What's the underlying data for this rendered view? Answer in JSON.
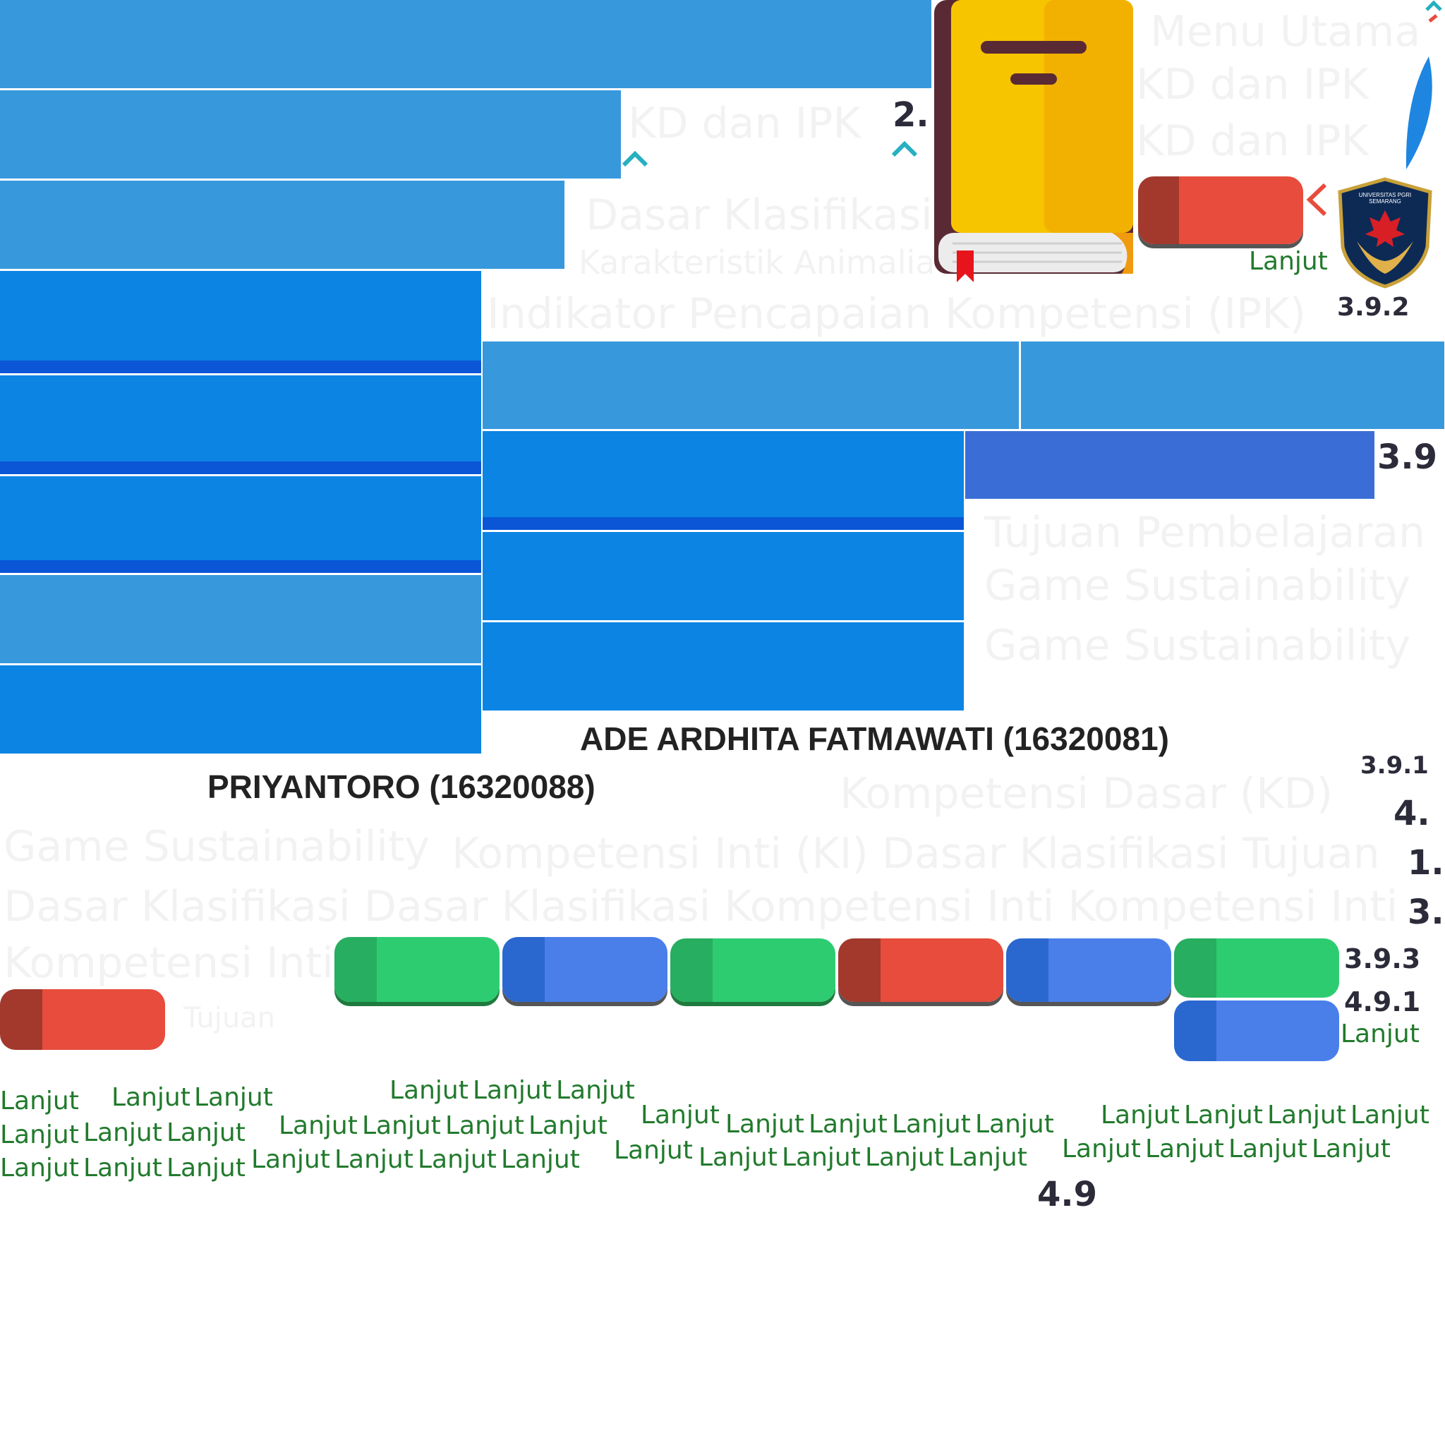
{
  "title_faint": {
    "t1": "Menu Utama",
    "t2": "KD dan IPK",
    "t3": "KD dan IPK",
    "t4": "KD dan IPK",
    "t5": "Dasar Klasifikasi",
    "t6": "Karakteristik Animalia",
    "t7": "Indikator Pencapaian Kompetensi (IPK)",
    "t8": "Tujuan Pembelajaran",
    "t9": "Game Sustainability",
    "t10": "Game Sustainability",
    "t11": "Kompetensi Dasar (KD)",
    "t12": "Game Sustainability",
    "t13": "Kompetensi Inti (KI)  Dasar Klasifikasi  Tujuan",
    "t14": "Dasar Klasifikasi  Dasar Klasifikasi  Kompetensi Inti  Kompetensi Inti",
    "t15": "Kompetensi Inti",
    "t16": "Tujuan"
  },
  "names": {
    "ade": "ADE ARDHITA FATMAWATI (16320081)",
    "pri": "PRIYANTORO (16320088)"
  },
  "numbers": {
    "n2": "2.",
    "n392": "3.9.2",
    "n39": "3.9",
    "n391": "3.9.1",
    "n4": "4.",
    "n1": "1.",
    "n3": "3.",
    "n393": "3.9.3",
    "n491": "4.9.1",
    "n49": "4.9"
  },
  "buttons": {
    "lanjut": "Lanjut"
  },
  "logo": {
    "text": "UNIVERSITAS PGRI SEMARANG"
  },
  "colors": {
    "light_blue": "#3898dc",
    "dark_blue": "#0b84e4",
    "green": "#2ecc71",
    "red": "#e74c3c",
    "blue_btn": "#4a7fea",
    "book": "#f5b800"
  }
}
